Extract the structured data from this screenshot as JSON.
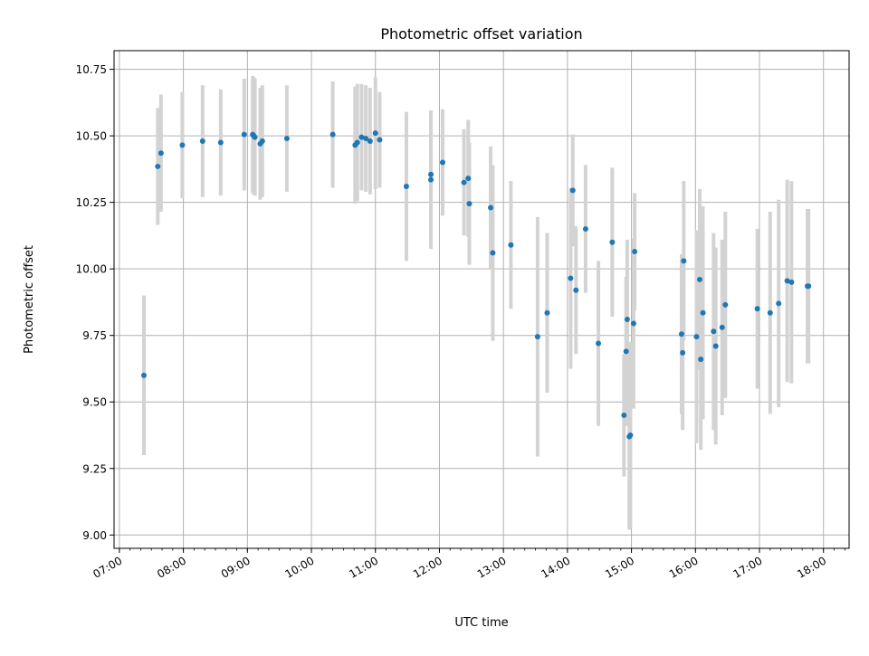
{
  "chart_data": {
    "type": "scatter",
    "title": "Photometric offset variation",
    "xlabel": "UTC time",
    "ylabel": "Photometric offset",
    "x_unit": "UTC hour of day",
    "xlim": [
      "06:55",
      "18:24"
    ],
    "ylim": [
      8.95,
      10.82
    ],
    "x_ticks": [
      "07:00",
      "08:00",
      "09:00",
      "10:00",
      "11:00",
      "12:00",
      "13:00",
      "14:00",
      "15:00",
      "16:00",
      "17:00",
      "18:00"
    ],
    "y_ticks": [
      "9.00",
      "9.25",
      "9.50",
      "9.75",
      "10.00",
      "10.25",
      "10.50",
      "10.75"
    ],
    "grid": true,
    "colors": {
      "points": "#1f77b4",
      "errorbars": "#d3d3d3",
      "grid": "#b0b0b0"
    },
    "series": [
      {
        "time": [
          "07:23",
          "07:36",
          "07:39",
          "07:59",
          "08:18",
          "08:35",
          "08:57",
          "09:05",
          "09:06",
          "09:07",
          "09:12",
          "09:14",
          "09:37",
          "10:20",
          "10:41",
          "10:43",
          "10:47",
          "10:51",
          "10:55",
          "11:00",
          "11:04",
          "11:29",
          "11:52",
          "11:52",
          "12:03",
          "12:23",
          "12:27",
          "12:28",
          "12:48",
          "12:50",
          "13:07",
          "13:32",
          "13:41",
          "14:03",
          "14:05",
          "14:08",
          "14:17",
          "14:29",
          "14:42",
          "14:56",
          "14:53",
          "14:55",
          "14:58",
          "14:59",
          "15:02",
          "15:03",
          "15:47",
          "15:48",
          "15:49",
          "16:01",
          "16:04",
          "16:05",
          "16:07",
          "16:17",
          "16:19",
          "16:25",
          "16:28",
          "16:58",
          "17:10",
          "17:18",
          "17:26",
          "17:30",
          "17:45",
          "17:46"
        ],
        "y": [
          9.6,
          10.385,
          10.435,
          10.465,
          10.48,
          10.475,
          10.505,
          10.505,
          10.5,
          10.495,
          10.47,
          10.48,
          10.49,
          10.505,
          10.465,
          10.475,
          10.495,
          10.49,
          10.48,
          10.51,
          10.485,
          10.31,
          10.335,
          10.355,
          10.4,
          10.325,
          10.34,
          10.245,
          10.23,
          10.06,
          10.09,
          9.745,
          9.835,
          9.965,
          10.295,
          9.92,
          10.15,
          9.72,
          10.1,
          9.81,
          9.45,
          9.69,
          9.37,
          9.375,
          9.795,
          10.065,
          9.755,
          9.685,
          10.03,
          9.745,
          9.96,
          9.66,
          9.835,
          9.765,
          9.71,
          9.78,
          9.865,
          9.85,
          9.835,
          9.87,
          9.955,
          9.95,
          9.935,
          9.935
        ],
        "yerr": [
          0.3,
          0.22,
          0.22,
          0.2,
          0.21,
          0.2,
          0.21,
          0.22,
          0.22,
          0.22,
          0.21,
          0.21,
          0.2,
          0.2,
          0.22,
          0.22,
          0.2,
          0.2,
          0.2,
          0.21,
          0.18,
          0.28,
          0.26,
          0.24,
          0.2,
          0.2,
          0.22,
          0.23,
          0.23,
          0.33,
          0.24,
          0.45,
          0.3,
          0.34,
          0.21,
          0.24,
          0.24,
          0.31,
          0.28,
          0.3,
          0.23,
          0.28,
          0.35,
          0.35,
          0.32,
          0.22,
          0.3,
          0.29,
          0.3,
          0.4,
          0.34,
          0.34,
          0.4,
          0.37,
          0.37,
          0.33,
          0.35,
          0.3,
          0.38,
          0.39,
          0.38,
          0.38,
          0.29,
          0.29
        ]
      }
    ]
  }
}
